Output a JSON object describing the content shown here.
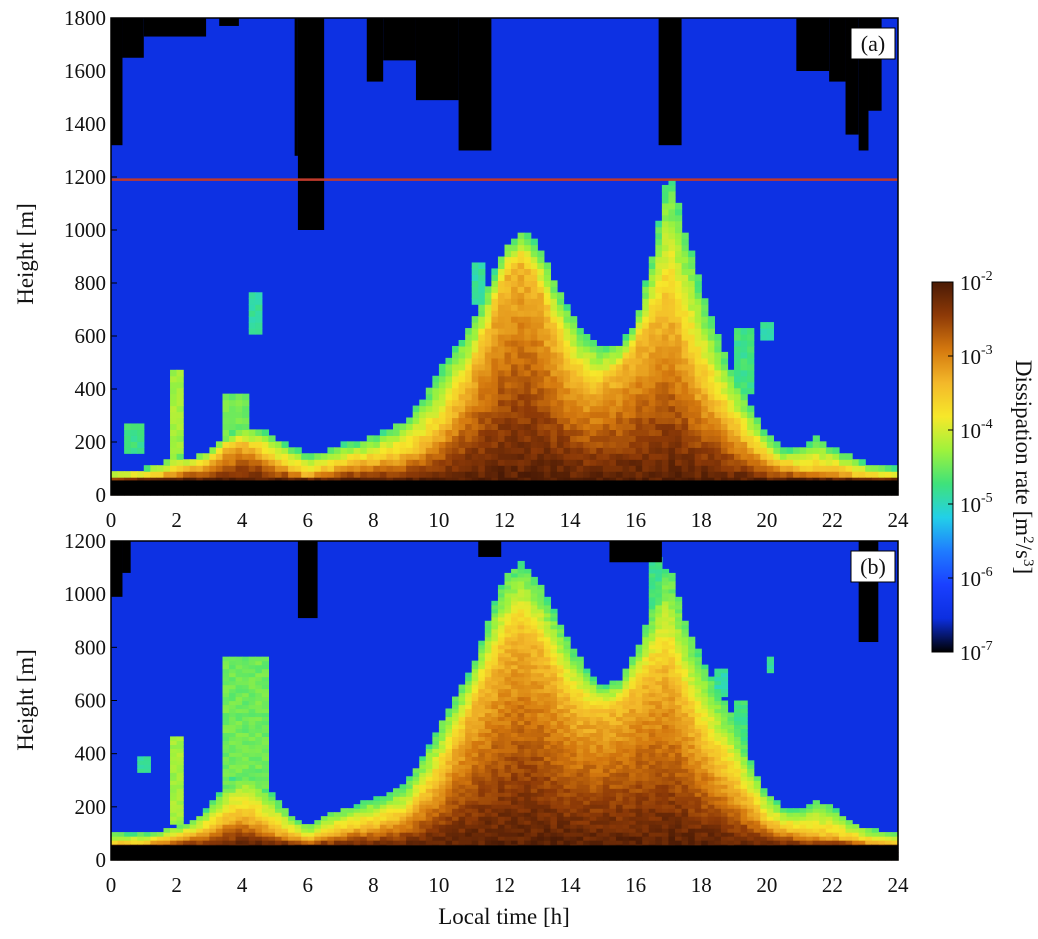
{
  "chart_data": [
    {
      "type": "heatmap",
      "panel_label": "(a)",
      "xlabel": "",
      "ylabel": "Height [m]",
      "xlim": [
        0,
        24
      ],
      "ylim": [
        0,
        1800
      ],
      "xticks": [
        "0",
        "2",
        "4",
        "6",
        "8",
        "10",
        "12",
        "14",
        "16",
        "18",
        "20",
        "22",
        "24"
      ],
      "yticks": [
        "0",
        "200",
        "400",
        "600",
        "800",
        "1000",
        "1200",
        "1400",
        "1600",
        "1800"
      ],
      "reference_line_height_m": 1190,
      "reference_line_color": "#c0392b",
      "blind_zone_top_m": 55,
      "mixing_layer_top_m": [
        [
          0,
          95
        ],
        [
          0.5,
          100
        ],
        [
          1,
          100
        ],
        [
          1.5,
          120
        ],
        [
          2,
          150
        ],
        [
          2.5,
          140
        ],
        [
          3,
          170
        ],
        [
          3.5,
          230
        ],
        [
          4,
          260
        ],
        [
          4.5,
          250
        ],
        [
          5,
          220
        ],
        [
          5.5,
          185
        ],
        [
          6,
          150
        ],
        [
          6.5,
          165
        ],
        [
          7,
          190
        ],
        [
          7.5,
          200
        ],
        [
          8,
          220
        ],
        [
          8.5,
          250
        ],
        [
          9,
          280
        ],
        [
          9.5,
          360
        ],
        [
          10,
          470
        ],
        [
          10.5,
          560
        ],
        [
          11,
          640
        ],
        [
          11.5,
          780
        ],
        [
          12,
          940
        ],
        [
          12.5,
          1000
        ],
        [
          13,
          950
        ],
        [
          13.5,
          820
        ],
        [
          14,
          690
        ],
        [
          14.5,
          600
        ],
        [
          15,
          560
        ],
        [
          15.5,
          570
        ],
        [
          16,
          650
        ],
        [
          16.5,
          900
        ],
        [
          17,
          1230
        ],
        [
          17.5,
          1000
        ],
        [
          18,
          780
        ],
        [
          18.5,
          600
        ],
        [
          19,
          450
        ],
        [
          19.5,
          330
        ],
        [
          20,
          230
        ],
        [
          20.5,
          170
        ],
        [
          21,
          175
        ],
        [
          21.5,
          215
        ],
        [
          22,
          185
        ],
        [
          22.5,
          150
        ],
        [
          23,
          120
        ],
        [
          23.5,
          108
        ],
        [
          24,
          100
        ]
      ],
      "strong_core_top_m": [
        [
          0,
          60
        ],
        [
          1,
          62
        ],
        [
          2,
          90
        ],
        [
          3,
          120
        ],
        [
          3.5,
          170
        ],
        [
          4,
          190
        ],
        [
          4.5,
          170
        ],
        [
          5,
          120
        ],
        [
          6,
          75
        ],
        [
          7,
          110
        ],
        [
          8,
          130
        ],
        [
          9,
          150
        ],
        [
          10,
          230
        ],
        [
          10.5,
          330
        ],
        [
          11,
          460
        ],
        [
          11.5,
          620
        ],
        [
          12,
          820
        ],
        [
          12.5,
          870
        ],
        [
          13,
          800
        ],
        [
          13.5,
          620
        ],
        [
          14,
          480
        ],
        [
          14.5,
          410
        ],
        [
          15,
          420
        ],
        [
          15.5,
          470
        ],
        [
          16,
          560
        ],
        [
          16.5,
          640
        ],
        [
          17,
          720
        ],
        [
          17.5,
          560
        ],
        [
          18,
          420
        ],
        [
          18.5,
          330
        ],
        [
          19,
          250
        ],
        [
          20,
          130
        ],
        [
          21,
          95
        ],
        [
          22,
          90
        ],
        [
          23,
          70
        ],
        [
          24,
          65
        ]
      ],
      "no_data_columns": [
        {
          "x0": 0,
          "x1": 0.35,
          "ymin": 1320
        },
        {
          "x0": 0.35,
          "x1": 1.0,
          "ymin": 1650
        },
        {
          "x0": 1.0,
          "x1": 2.9,
          "ymin": 1730
        },
        {
          "x0": 3.3,
          "x1": 3.9,
          "ymin": 1770
        },
        {
          "x0": 5.6,
          "x1": 5.7,
          "ymin": 1280
        },
        {
          "x0": 5.7,
          "x1": 6.5,
          "ymin": 1000
        },
        {
          "x0": 7.8,
          "x1": 8.3,
          "ymin": 1560
        },
        {
          "x0": 8.3,
          "x1": 9.3,
          "ymin": 1640
        },
        {
          "x0": 9.3,
          "x1": 10.6,
          "ymin": 1490
        },
        {
          "x0": 10.6,
          "x1": 11.6,
          "ymin": 1300
        },
        {
          "x0": 16.7,
          "x1": 17.4,
          "ymin": 1320
        },
        {
          "x0": 20.9,
          "x1": 21.9,
          "ymin": 1600
        },
        {
          "x0": 21.9,
          "x1": 22.4,
          "ymin": 1560
        },
        {
          "x0": 22.4,
          "x1": 22.8,
          "ymin": 1360
        },
        {
          "x0": 22.8,
          "x1": 23.1,
          "ymin": 1300
        },
        {
          "x0": 23.1,
          "x1": 23.5,
          "ymin": 1450
        }
      ],
      "turbulent_patches": [
        {
          "x0": 1.9,
          "x1": 2.3,
          "y0": 140,
          "y1": 480,
          "level": 0.55
        },
        {
          "x0": 3.4,
          "x1": 4.2,
          "y0": 180,
          "y1": 390,
          "level": 0.5
        },
        {
          "x0": 0.4,
          "x1": 0.9,
          "y0": 160,
          "y1": 260,
          "level": 0.45
        },
        {
          "x0": 4.3,
          "x1": 4.6,
          "y0": 610,
          "y1": 760,
          "level": 0.42
        },
        {
          "x0": 11.1,
          "x1": 11.4,
          "y0": 710,
          "y1": 870,
          "level": 0.42
        },
        {
          "x0": 19.0,
          "x1": 19.5,
          "y0": 380,
          "y1": 640,
          "level": 0.45
        },
        {
          "x0": 19.9,
          "x1": 20.1,
          "y0": 590,
          "y1": 650,
          "level": 0.42
        }
      ]
    },
    {
      "type": "heatmap",
      "panel_label": "(b)",
      "xlabel": "Local time [h]",
      "ylabel": "Height [m]",
      "xlim": [
        0,
        24
      ],
      "ylim": [
        0,
        1200
      ],
      "xticks": [
        "0",
        "2",
        "4",
        "6",
        "8",
        "10",
        "12",
        "14",
        "16",
        "18",
        "20",
        "22",
        "24"
      ],
      "yticks": [
        "0",
        "200",
        "400",
        "600",
        "800",
        "1000",
        "1200"
      ],
      "blind_zone_top_m": 55,
      "mixing_layer_top_m": [
        [
          0,
          100
        ],
        [
          0.5,
          100
        ],
        [
          1,
          100
        ],
        [
          1.5,
          110
        ],
        [
          2,
          130
        ],
        [
          2.5,
          150
        ],
        [
          3,
          200
        ],
        [
          3.5,
          290
        ],
        [
          4,
          340
        ],
        [
          4.5,
          300
        ],
        [
          5,
          240
        ],
        [
          5.5,
          170
        ],
        [
          6,
          130
        ],
        [
          6.5,
          170
        ],
        [
          7,
          190
        ],
        [
          7.5,
          210
        ],
        [
          8,
          230
        ],
        [
          8.5,
          250
        ],
        [
          9,
          290
        ],
        [
          9.5,
          390
        ],
        [
          10,
          510
        ],
        [
          10.5,
          620
        ],
        [
          11,
          720
        ],
        [
          11.5,
          900
        ],
        [
          12,
          1070
        ],
        [
          12.5,
          1120
        ],
        [
          13,
          1050
        ],
        [
          13.5,
          940
        ],
        [
          14,
          820
        ],
        [
          14.5,
          720
        ],
        [
          15,
          650
        ],
        [
          15.5,
          680
        ],
        [
          16,
          780
        ],
        [
          16.5,
          950
        ],
        [
          17,
          1130
        ],
        [
          17.5,
          900
        ],
        [
          18,
          760
        ],
        [
          18.5,
          640
        ],
        [
          19,
          540
        ],
        [
          19.5,
          370
        ],
        [
          20,
          250
        ],
        [
          20.5,
          200
        ],
        [
          21,
          190
        ],
        [
          21.5,
          220
        ],
        [
          22,
          200
        ],
        [
          22.5,
          150
        ],
        [
          23,
          120
        ],
        [
          23.5,
          110
        ],
        [
          24,
          100
        ]
      ],
      "strong_core_top_m": [
        [
          0,
          62
        ],
        [
          1,
          64
        ],
        [
          2,
          80
        ],
        [
          3,
          110
        ],
        [
          3.5,
          150
        ],
        [
          4,
          170
        ],
        [
          4.5,
          150
        ],
        [
          5,
          110
        ],
        [
          6,
          75
        ],
        [
          7,
          110
        ],
        [
          8,
          130
        ],
        [
          9,
          160
        ],
        [
          10,
          300
        ],
        [
          10.5,
          430
        ],
        [
          11,
          560
        ],
        [
          11.5,
          680
        ],
        [
          12,
          800
        ],
        [
          12.5,
          860
        ],
        [
          13,
          820
        ],
        [
          13.5,
          700
        ],
        [
          14,
          600
        ],
        [
          14.5,
          560
        ],
        [
          15,
          560
        ],
        [
          15.5,
          580
        ],
        [
          16,
          640
        ],
        [
          16.5,
          700
        ],
        [
          17,
          720
        ],
        [
          17.5,
          580
        ],
        [
          18,
          450
        ],
        [
          18.5,
          360
        ],
        [
          19,
          280
        ],
        [
          20,
          140
        ],
        [
          21,
          100
        ],
        [
          22,
          90
        ],
        [
          23,
          70
        ],
        [
          24,
          65
        ]
      ],
      "no_data_columns": [
        {
          "x0": 0,
          "x1": 0.35,
          "ymin": 990
        },
        {
          "x0": 0.35,
          "x1": 0.6,
          "ymin": 1080
        },
        {
          "x0": 5.7,
          "x1": 6.3,
          "ymin": 910
        },
        {
          "x0": 11.2,
          "x1": 11.9,
          "ymin": 1140
        },
        {
          "x0": 15.2,
          "x1": 16.8,
          "ymin": 1120
        },
        {
          "x0": 22.8,
          "x1": 23.4,
          "ymin": 820
        }
      ],
      "turbulent_patches": [
        {
          "x0": 1.9,
          "x1": 2.3,
          "y0": 140,
          "y1": 470,
          "level": 0.55
        },
        {
          "x0": 3.5,
          "x1": 4.7,
          "y0": 150,
          "y1": 760,
          "level": 0.5
        },
        {
          "x0": 0.8,
          "x1": 1.1,
          "y0": 330,
          "y1": 390,
          "level": 0.42
        },
        {
          "x0": 19.0,
          "x1": 19.4,
          "y0": 360,
          "y1": 600,
          "level": 0.45
        },
        {
          "x0": 18.5,
          "x1": 18.8,
          "y0": 620,
          "y1": 720,
          "level": 0.42
        },
        {
          "x0": 20.0,
          "x1": 20.2,
          "y0": 710,
          "y1": 770,
          "level": 0.42
        },
        {
          "x0": 16.4,
          "x1": 16.9,
          "y0": 900,
          "y1": 1140,
          "level": 0.45
        }
      ]
    }
  ],
  "colorbar": {
    "label_parts": [
      "Dissipation rate [m",
      "2",
      "/s",
      "3",
      "]"
    ],
    "ticks": [
      {
        "base": "10",
        "exp": "-2"
      },
      {
        "base": "10",
        "exp": "-3"
      },
      {
        "base": "10",
        "exp": "-4"
      },
      {
        "base": "10",
        "exp": "-5"
      },
      {
        "base": "10",
        "exp": "-6"
      },
      {
        "base": "10",
        "exp": "-7"
      }
    ],
    "scale": "log",
    "range": [
      1e-07,
      0.01
    ],
    "colormap": [
      "#000000",
      "#0c2fe0",
      "#1a40ff",
      "#1f7cff",
      "#22d0e8",
      "#3fe27a",
      "#9ef23c",
      "#f6e82a",
      "#f3b82a",
      "#d4780e",
      "#8e3a07",
      "#4a1a05"
    ]
  }
}
